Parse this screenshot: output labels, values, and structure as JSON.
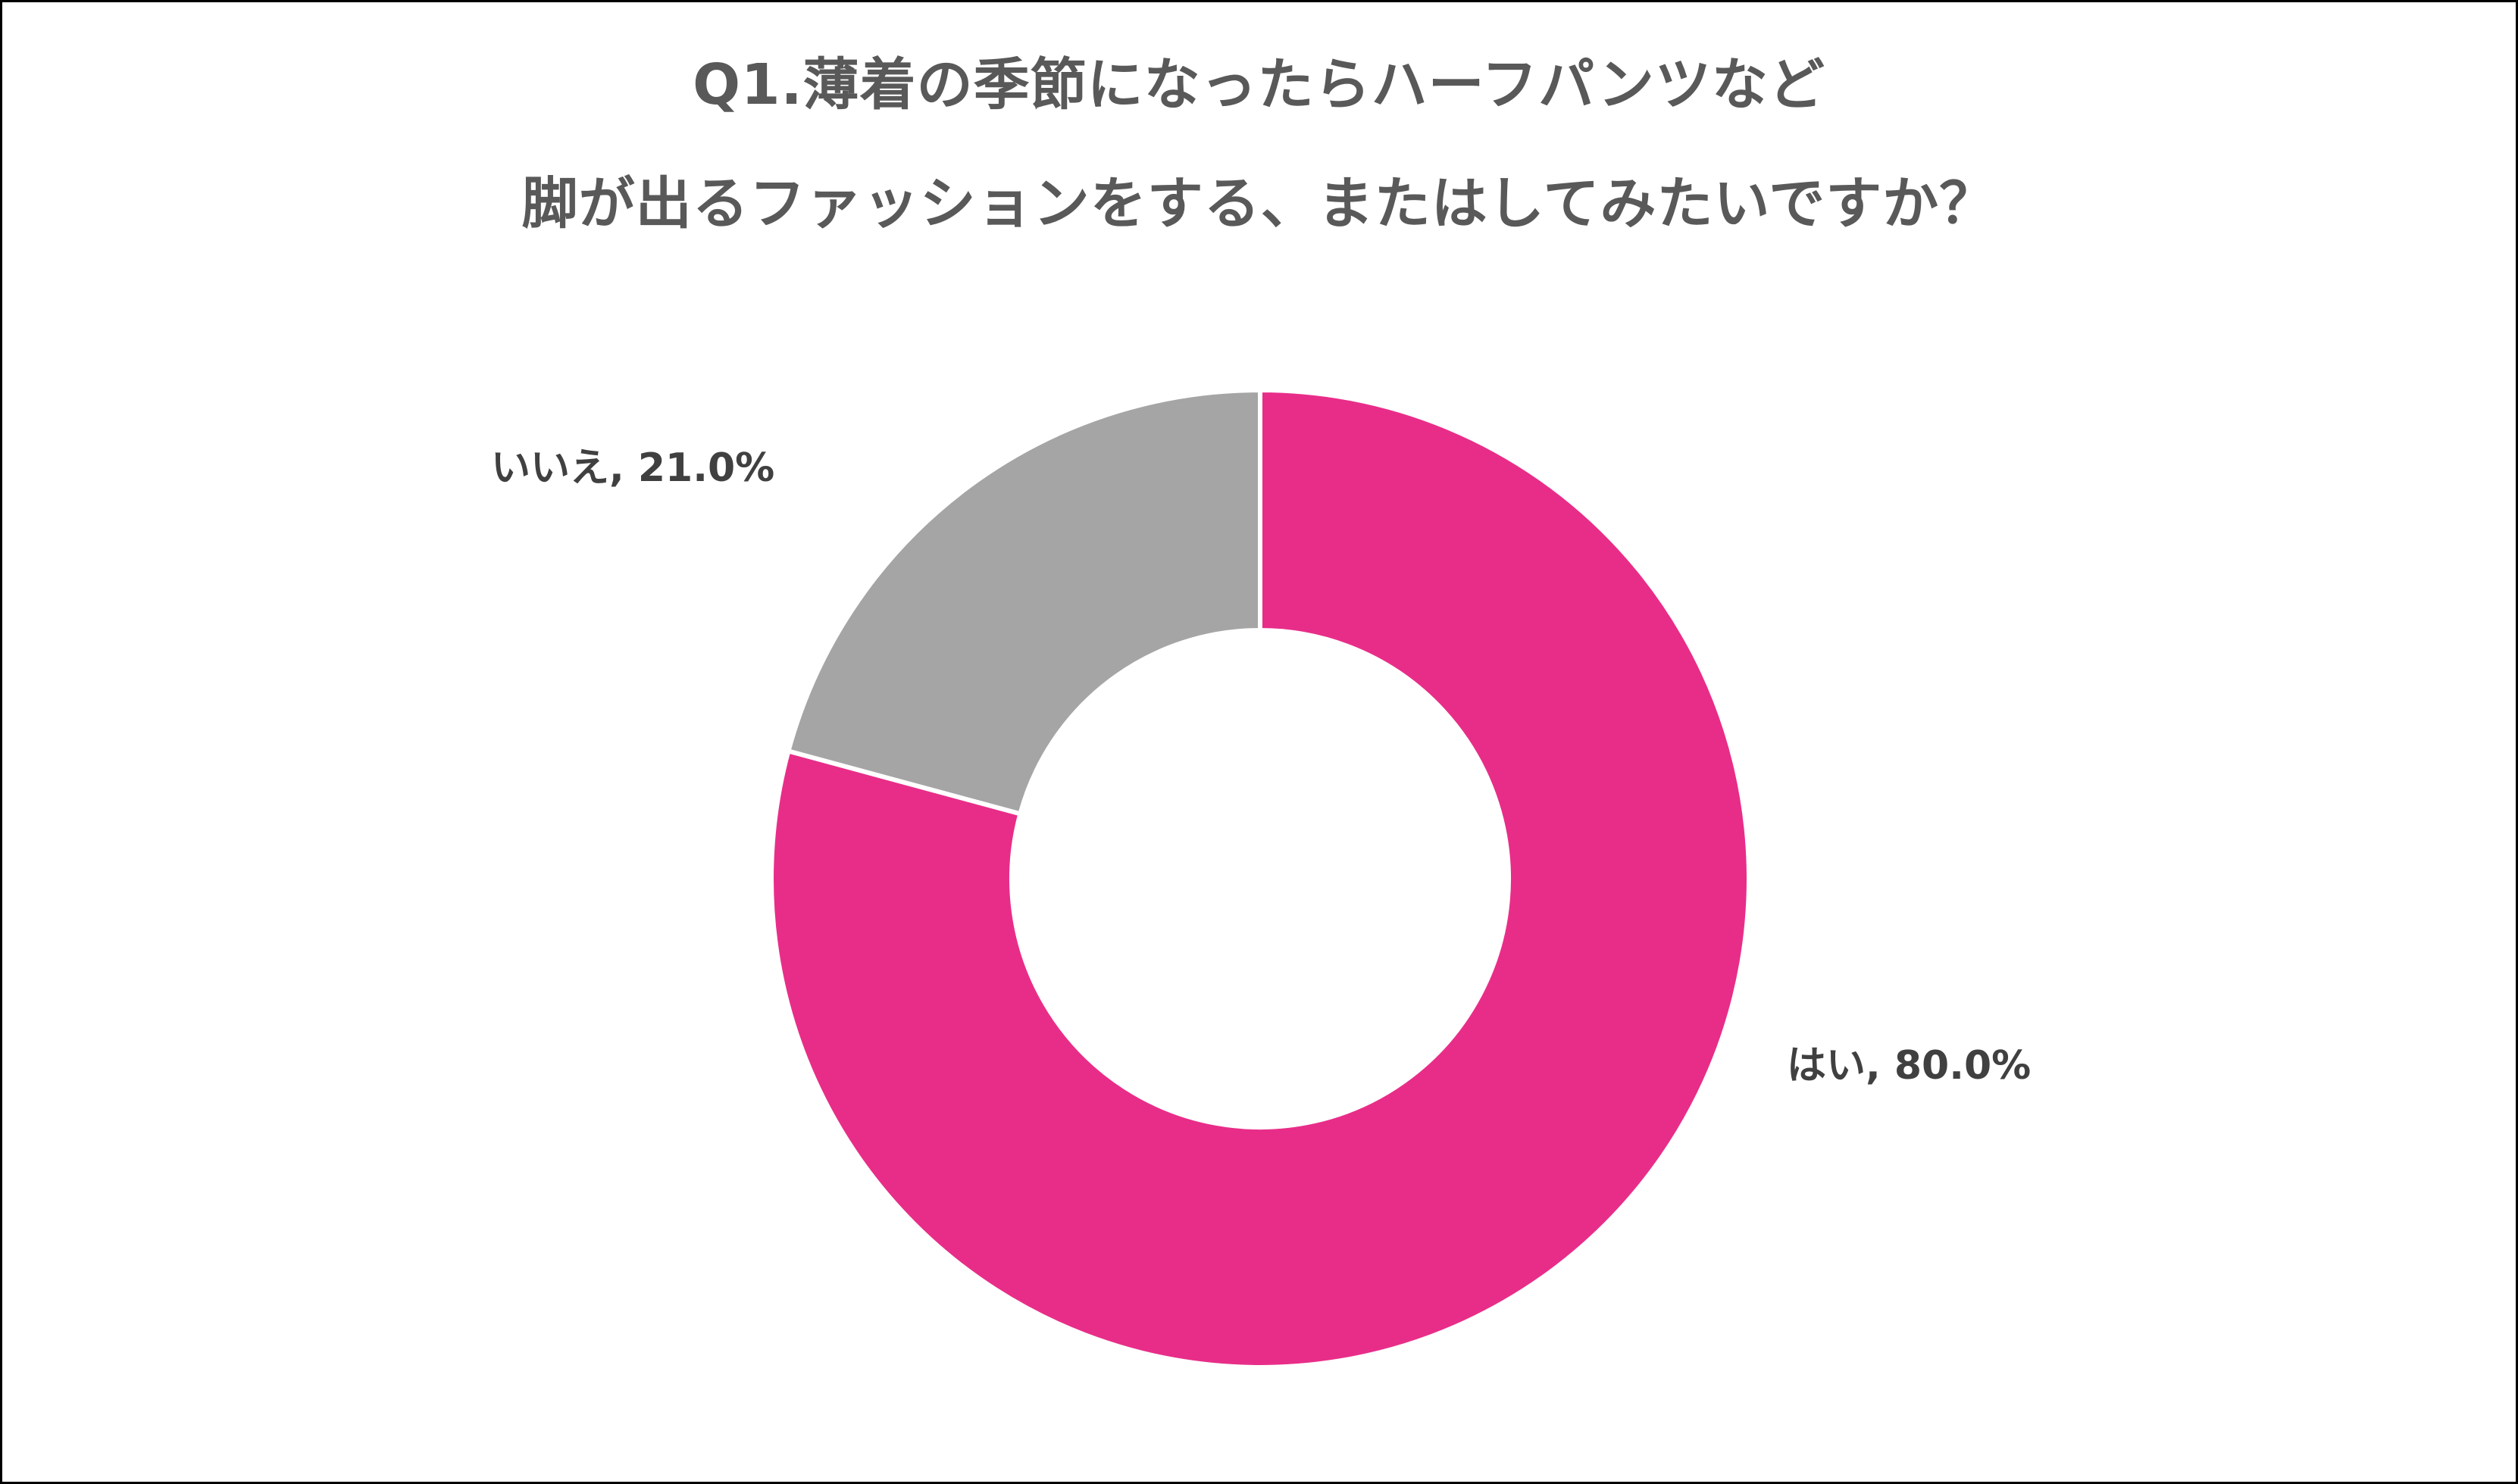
{
  "chart": {
    "title_line1": "Q1.薄着の季節になったらハーフパンツなど",
    "title_line2": "脚が出るファッションをする、またはしてみたいですか？",
    "labels": {
      "yes": "はい, 80.0%",
      "no": "いいえ, 21.0%"
    }
  },
  "colors": {
    "yes": "#E82D89",
    "no": "#A5A5A5",
    "title_text": "#595959",
    "label_text": "#404040",
    "frame": "#000000"
  },
  "chart_data": {
    "type": "pie",
    "variant": "donut",
    "title": "Q1.薄着の季節になったらハーフパンツなど 脚が出るファッションをする、またはしてみたいですか？",
    "categories": [
      "はい",
      "いいえ"
    ],
    "values": [
      80.0,
      21.0
    ],
    "unit": "%",
    "data_labels": [
      "はい, 80.0%",
      "いいえ, 21.0%"
    ],
    "colors": [
      "#E82D89",
      "#A5A5A5"
    ],
    "start_angle": "12 o'clock, clockwise",
    "legend": "none (category names in data labels)"
  }
}
